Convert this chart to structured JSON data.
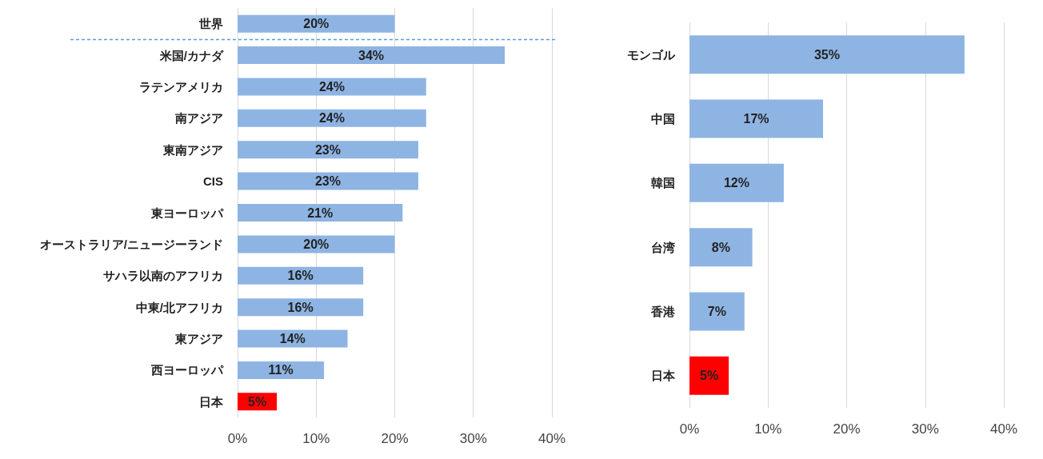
{
  "chart_data": [
    {
      "type": "bar",
      "orientation": "horizontal",
      "categories": [
        "世界",
        "米国/カナダ",
        "ラテンアメリカ",
        "南アジア",
        "東南アジア",
        "CIS",
        "東ヨーロッパ",
        "オーストラリア/ニュージーランド",
        "サハラ以南のアフリカ",
        "中東/北アフリカ",
        "東アジア",
        "西ヨーロッパ",
        "日本"
      ],
      "values": [
        20,
        34,
        24,
        24,
        23,
        23,
        21,
        20,
        16,
        16,
        14,
        11,
        5
      ],
      "value_labels": [
        "20%",
        "34%",
        "24%",
        "24%",
        "23%",
        "23%",
        "21%",
        "20%",
        "16%",
        "16%",
        "14%",
        "11%",
        "5%"
      ],
      "colors": [
        "#8eb4e3",
        "#8eb4e3",
        "#8eb4e3",
        "#8eb4e3",
        "#8eb4e3",
        "#8eb4e3",
        "#8eb4e3",
        "#8eb4e3",
        "#8eb4e3",
        "#8eb4e3",
        "#8eb4e3",
        "#8eb4e3",
        "#ff0000"
      ],
      "xlim": [
        0,
        40
      ],
      "xticks": [
        {
          "value": 0,
          "label": "0%"
        },
        {
          "value": 10,
          "label": "10%"
        },
        {
          "value": 20,
          "label": "20%"
        },
        {
          "value": 30,
          "label": "30%"
        },
        {
          "value": 40,
          "label": "40%"
        }
      ],
      "grid": "x",
      "ref_lines": [
        {
          "axis": "y",
          "value": "世界",
          "color": "#5b9bd5",
          "line_style": "dashed"
        }
      ]
    },
    {
      "type": "bar",
      "orientation": "horizontal",
      "categories": [
        "モンゴル",
        "中国",
        "韓国",
        "台湾",
        "香港",
        "日本"
      ],
      "values": [
        35,
        17,
        12,
        8,
        7,
        5
      ],
      "value_labels": [
        "35%",
        "17%",
        "12%",
        "8%",
        "7%",
        "5%"
      ],
      "colors": [
        "#8eb4e3",
        "#8eb4e3",
        "#8eb4e3",
        "#8eb4e3",
        "#8eb4e3",
        "#ff0000"
      ],
      "xlim": [
        0,
        40
      ],
      "xticks": [
        {
          "value": 0,
          "label": "0%"
        },
        {
          "value": 10,
          "label": "10%"
        },
        {
          "value": 20,
          "label": "20%"
        },
        {
          "value": 30,
          "label": "30%"
        },
        {
          "value": 40,
          "label": "40%"
        }
      ],
      "grid": "x"
    }
  ]
}
